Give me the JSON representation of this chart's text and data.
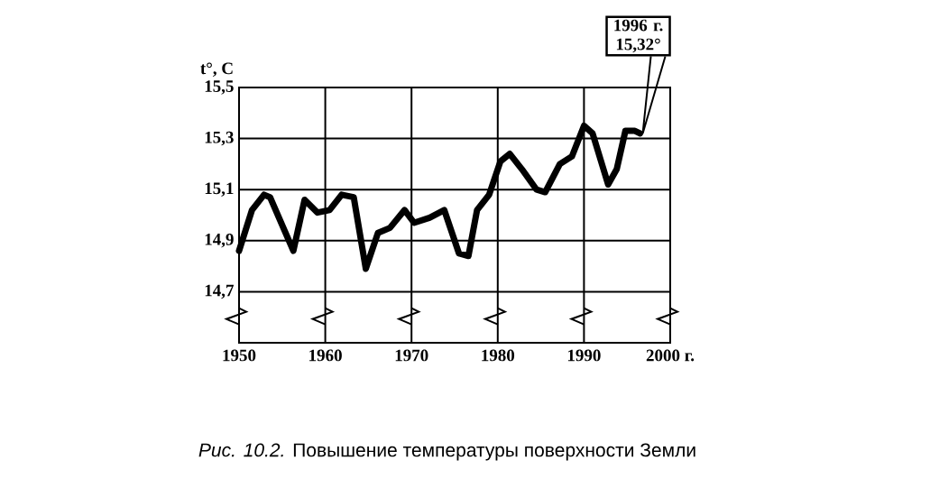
{
  "chart_data": {
    "type": "line",
    "ylabel": "t°, C",
    "x": [
      1950,
      1951.5,
      1952.9,
      1953.6,
      1956.3,
      1957.6,
      1959.1,
      1960.5,
      1961.9,
      1963.3,
      1964.7,
      1966.1,
      1967.5,
      1969.2,
      1970.3,
      1972.1,
      1973.8,
      1975.5,
      1976.6,
      1977.6,
      1979,
      1980.3,
      1981.4,
      1982.8,
      1984.5,
      1985.5,
      1987.2,
      1988.6,
      1990,
      1991,
      1992.8,
      1993.8,
      1994.8,
      1995.9,
      1996.5
    ],
    "values": [
      14.86,
      15.02,
      15.08,
      15.07,
      14.86,
      15.06,
      15.01,
      15.02,
      15.08,
      15.07,
      14.79,
      14.93,
      14.95,
      15.02,
      14.97,
      14.99,
      15.02,
      14.85,
      14.84,
      15.02,
      15.08,
      15.21,
      15.24,
      15.18,
      15.1,
      15.09,
      15.2,
      15.23,
      15.35,
      15.32,
      15.12,
      15.18,
      15.33,
      15.33,
      15.32
    ],
    "color": "#000000",
    "xlim": [
      1950,
      2000
    ],
    "ylim": [
      14.5,
      15.5
    ],
    "xticks": [
      1950,
      1960,
      1970,
      1980,
      1990,
      {
        "value": 2000,
        "label": "2000 г."
      }
    ],
    "yticks": [
      {
        "value": 14.7,
        "label": "14,7"
      },
      {
        "value": 14.9,
        "label": "14,9"
      },
      {
        "value": 15.1,
        "label": "15,1"
      },
      {
        "value": 15.3,
        "label": "15,3"
      },
      {
        "value": 15.5,
        "label": "15,5"
      }
    ],
    "grid": true,
    "annotations": [
      "1996 г. 15,32°",
      "*Рис. 10.2.* Повышение температуры поверхности Земли"
    ]
  }
}
